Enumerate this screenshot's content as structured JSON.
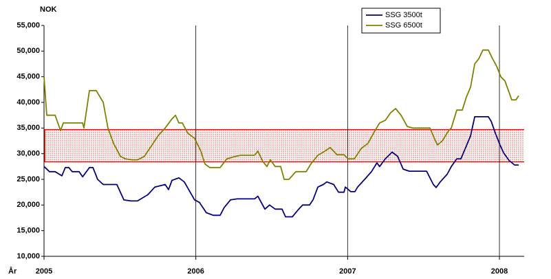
{
  "chart_data": {
    "type": "line",
    "y_label": "NOK",
    "x_label": "År",
    "xlim": [
      2005,
      2008.163
    ],
    "xticks": [
      2005,
      2006,
      2007,
      2008
    ],
    "ylim": [
      10000,
      55000
    ],
    "yticks": [
      {
        "value": 10000,
        "label": "10,000"
      },
      {
        "value": 15000,
        "label": "15,000"
      },
      {
        "value": 20000,
        "label": "20,000"
      },
      {
        "value": 25000,
        "label": "25,000"
      },
      {
        "value": 30000,
        "label": "30,000"
      },
      {
        "value": 35000,
        "label": "35,000"
      },
      {
        "value": 40000,
        "label": "40,000"
      },
      {
        "value": 45000,
        "label": "45,000"
      },
      {
        "value": 50000,
        "label": "50,000"
      },
      {
        "value": 55000,
        "label": "55,000"
      }
    ],
    "x_grid": true,
    "legend": "top-right",
    "band": {
      "from": 28400,
      "to": 34700,
      "color": "#ff0000"
    },
    "series": [
      {
        "name": "SSG 3500t",
        "color": "#000080",
        "x": [
          2005.0,
          2005.036,
          2005.073,
          2005.118,
          2005.14,
          2005.163,
          2005.186,
          2005.231,
          2005.254,
          2005.299,
          2005.322,
          2005.353,
          2005.39,
          2005.48,
          2005.526,
          2005.571,
          2005.616,
          2005.684,
          2005.73,
          2005.798,
          2005.82,
          2005.843,
          2005.888,
          2005.924,
          2005.992,
          2006.024,
          2006.069,
          2006.115,
          2006.16,
          2006.187,
          2006.228,
          2006.273,
          2006.387,
          2006.409,
          2006.455,
          2006.486,
          2006.523,
          2006.568,
          2006.591,
          2006.636,
          2006.672,
          2006.704,
          2006.749,
          2006.772,
          2006.804,
          2006.84,
          2006.863,
          2006.908,
          2006.94,
          2006.976,
          2006.985,
          2007.021,
          2007.048,
          2007.066,
          2007.112,
          2007.157,
          2007.193,
          2007.211,
          2007.248,
          2007.293,
          2007.329,
          2007.366,
          2007.406,
          2007.52,
          2007.565,
          2007.583,
          2007.61,
          2007.656,
          2007.683,
          2007.719,
          2007.746,
          2007.782,
          2007.81,
          2007.837,
          2007.927,
          2007.946,
          2007.973,
          2008.004,
          2008.027,
          2008.063,
          2008.1,
          2008.127
        ],
        "values": [
          27500,
          26500,
          26500,
          25700,
          27300,
          27300,
          26500,
          26500,
          25500,
          27300,
          27300,
          25000,
          24000,
          24000,
          21000,
          20800,
          20800,
          22000,
          23500,
          24000,
          23000,
          24800,
          25300,
          24500,
          21000,
          20500,
          18500,
          18000,
          18000,
          19500,
          21000,
          21200,
          21200,
          21700,
          19200,
          20000,
          19200,
          19200,
          17700,
          17700,
          19000,
          20000,
          20000,
          21000,
          23500,
          24000,
          24500,
          24000,
          22500,
          22500,
          23500,
          22600,
          22600,
          23500,
          25000,
          26500,
          28200,
          27500,
          29000,
          30300,
          29500,
          27000,
          26600,
          26600,
          24000,
          23400,
          24500,
          26000,
          27500,
          29000,
          29000,
          31500,
          33500,
          37200,
          37200,
          36300,
          34000,
          31700,
          30200,
          28700,
          27800,
          27800
        ]
      },
      {
        "name": "SSG 6500t",
        "color": "#808000",
        "x": [
          2005.0,
          2005.018,
          2005.073,
          2005.109,
          2005.127,
          2005.254,
          2005.263,
          2005.299,
          2005.344,
          2005.39,
          2005.421,
          2005.458,
          2005.503,
          2005.535,
          2005.58,
          2005.616,
          2005.662,
          2005.684,
          2005.707,
          2005.752,
          2005.798,
          2005.843,
          2005.866,
          2005.888,
          2005.911,
          2005.947,
          2005.992,
          2006.033,
          2006.06,
          2006.092,
          2006.16,
          2006.205,
          2006.251,
          2006.296,
          2006.387,
          2006.409,
          2006.441,
          2006.468,
          2006.491,
          2006.523,
          2006.559,
          2006.582,
          2006.613,
          2006.659,
          2006.727,
          2006.758,
          2006.804,
          2006.84,
          2006.885,
          2006.93,
          2006.976,
          2007.003,
          2007.044,
          2007.089,
          2007.134,
          2007.18,
          2007.211,
          2007.248,
          2007.284,
          2007.316,
          2007.352,
          2007.393,
          2007.429,
          2007.542,
          2007.574,
          2007.592,
          2007.624,
          2007.665,
          2007.683,
          2007.719,
          2007.755,
          2007.782,
          2007.81,
          2007.837,
          2007.864,
          2007.891,
          2007.927,
          2007.955,
          2007.982,
          2008.009,
          2008.036,
          2008.081,
          2008.109,
          2008.127
        ],
        "values": [
          45000,
          37500,
          37500,
          34500,
          36000,
          36000,
          35000,
          42300,
          42300,
          40000,
          35000,
          32000,
          29500,
          29000,
          28800,
          28800,
          29500,
          30500,
          31500,
          33500,
          35000,
          36800,
          37500,
          36000,
          36000,
          34000,
          33000,
          30500,
          28000,
          27300,
          27300,
          29000,
          29400,
          29700,
          29700,
          30500,
          28500,
          27500,
          28800,
          27500,
          27500,
          25000,
          25000,
          26500,
          26500,
          28000,
          29700,
          30300,
          31200,
          29800,
          29800,
          29000,
          29000,
          31000,
          32000,
          34500,
          36000,
          36500,
          38000,
          38800,
          37500,
          35300,
          35000,
          35000,
          32800,
          31700,
          32500,
          34500,
          35000,
          38500,
          38500,
          41000,
          43000,
          47500,
          48500,
          50200,
          50200,
          48500,
          47000,
          45000,
          44200,
          40500,
          40500,
          41300
        ]
      }
    ]
  }
}
